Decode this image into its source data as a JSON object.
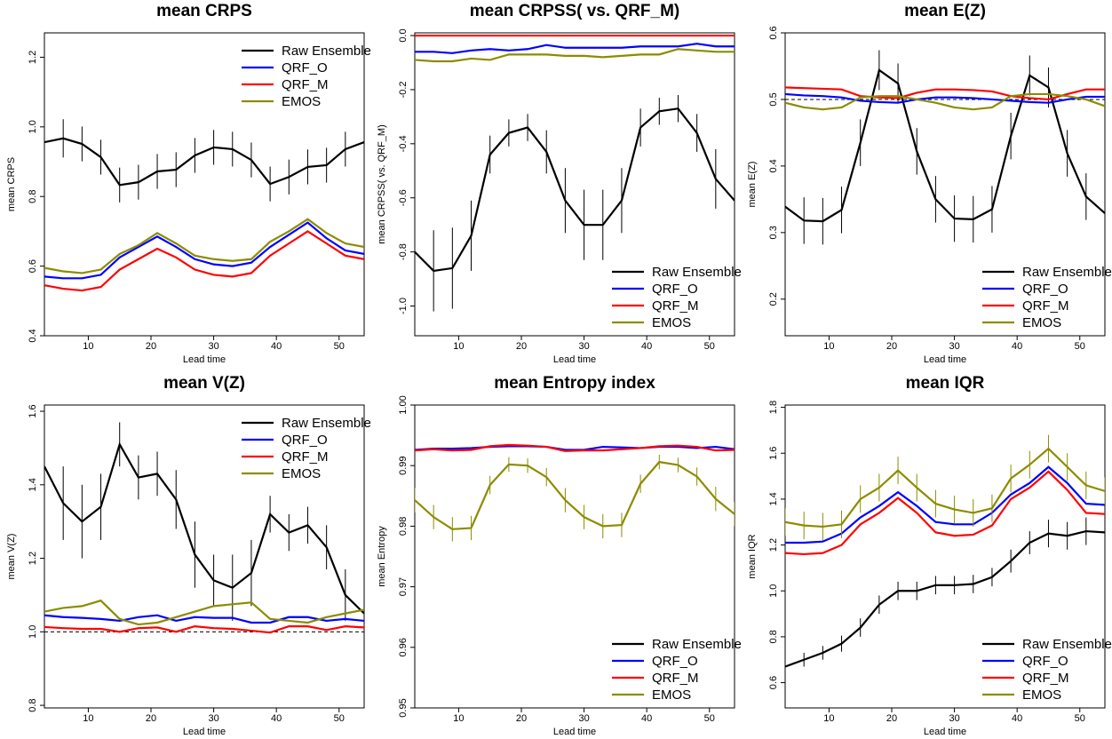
{
  "chart_data": [
    {
      "type": "line",
      "title": "mean CRPS",
      "xlabel": "Lead time",
      "ylabel": "mean CRPS",
      "legend": "top-right",
      "x": [
        3,
        6,
        9,
        12,
        15,
        18,
        21,
        24,
        27,
        30,
        33,
        36,
        39,
        42,
        45,
        48,
        51,
        54
      ],
      "xlim": [
        3,
        54
      ],
      "xticks": [
        10,
        20,
        30,
        40,
        50
      ],
      "ylim": [
        0.4,
        1.27
      ],
      "yticks": [
        0.4,
        0.6,
        0.8,
        {
          "value": 1.0,
          "label": "1.0"
        },
        1.2
      ],
      "series": [
        {
          "name": "Raw Ensemble",
          "color": "#000000",
          "values": [
            0.956,
            0.967,
            0.951,
            0.913,
            0.833,
            0.841,
            0.872,
            0.877,
            0.918,
            0.941,
            0.936,
            0.905,
            0.836,
            0.856,
            0.885,
            0.89,
            0.936,
            0.956
          ],
          "errors": [
            0.05,
            0.055,
            0.05,
            0.05,
            0.05,
            0.05,
            0.05,
            0.05,
            0.05,
            0.05,
            0.05,
            0.05,
            0.05,
            0.05,
            0.05,
            0.05,
            0.05,
            0.05
          ]
        },
        {
          "name": "QRF_O",
          "color": "#0000ff",
          "values": [
            0.57,
            0.565,
            0.565,
            0.575,
            0.625,
            0.655,
            0.685,
            0.655,
            0.62,
            0.605,
            0.6,
            0.61,
            0.655,
            0.69,
            0.725,
            0.68,
            0.645,
            0.635
          ]
        },
        {
          "name": "QRF_M",
          "color": "#ff0000",
          "values": [
            0.545,
            0.535,
            0.53,
            0.54,
            0.59,
            0.62,
            0.65,
            0.625,
            0.59,
            0.575,
            0.57,
            0.58,
            0.63,
            0.665,
            0.7,
            0.665,
            0.63,
            0.62
          ]
        },
        {
          "name": "EMOS",
          "color": "#8c8c00",
          "values": [
            0.595,
            0.585,
            0.58,
            0.59,
            0.635,
            0.66,
            0.695,
            0.665,
            0.63,
            0.62,
            0.615,
            0.62,
            0.67,
            0.7,
            0.735,
            0.695,
            0.665,
            0.655
          ]
        }
      ]
    },
    {
      "type": "line",
      "title": "mean CRPSS( vs. QRF_M)",
      "xlabel": "Lead time",
      "ylabel": "mean CRPSS( vs. QRF_M)",
      "legend": "bottom-right",
      "x": [
        3,
        6,
        9,
        12,
        15,
        18,
        21,
        24,
        27,
        30,
        33,
        36,
        39,
        42,
        45,
        48,
        51,
        54
      ],
      "xlim": [
        3,
        54
      ],
      "xticks": [
        10,
        20,
        30,
        40,
        50
      ],
      "ylim": [
        -1.11,
        0.01
      ],
      "yticks": [
        {
          "value": -1.0,
          "label": "-1.0"
        },
        -0.8,
        -0.6,
        -0.4,
        -0.2,
        {
          "value": 0.0,
          "label": "0.0"
        }
      ],
      "series": [
        {
          "name": "Raw Ensemble",
          "color": "#000000",
          "values": [
            -0.8,
            -0.87,
            -0.86,
            -0.74,
            -0.44,
            -0.36,
            -0.34,
            -0.43,
            -0.61,
            -0.7,
            -0.7,
            -0.61,
            -0.34,
            -0.28,
            -0.27,
            -0.36,
            -0.53,
            -0.61
          ],
          "errors": [
            0.12,
            0.15,
            0.15,
            0.13,
            0.07,
            0.05,
            0.05,
            0.08,
            0.12,
            0.13,
            0.13,
            0.12,
            0.07,
            0.05,
            0.05,
            0.07,
            0.11,
            0.12
          ]
        },
        {
          "name": "QRF_O",
          "color": "#0000ff",
          "values": [
            -0.06,
            -0.06,
            -0.065,
            -0.055,
            -0.05,
            -0.055,
            -0.05,
            -0.035,
            -0.045,
            -0.045,
            -0.045,
            -0.045,
            -0.04,
            -0.04,
            -0.04,
            -0.03,
            -0.04,
            -0.04
          ]
        },
        {
          "name": "QRF_M",
          "color": "#ff0000",
          "values": [
            0,
            0,
            0,
            0,
            0,
            0,
            0,
            0,
            0,
            0,
            0,
            0,
            0,
            0,
            0,
            0,
            0,
            0
          ]
        },
        {
          "name": "EMOS",
          "color": "#8c8c00",
          "values": [
            -0.09,
            -0.095,
            -0.095,
            -0.085,
            -0.09,
            -0.07,
            -0.07,
            -0.07,
            -0.075,
            -0.075,
            -0.08,
            -0.075,
            -0.07,
            -0.07,
            -0.05,
            -0.055,
            -0.06,
            -0.06
          ]
        }
      ]
    },
    {
      "type": "line",
      "title": "mean E(Z)",
      "xlabel": "Lead time",
      "ylabel": "mean E(Z)",
      "legend": "bottom-right",
      "reference_line": 0.5,
      "x": [
        3,
        6,
        9,
        12,
        15,
        18,
        21,
        24,
        27,
        30,
        33,
        36,
        39,
        42,
        45,
        48,
        51,
        54
      ],
      "xlim": [
        3,
        54
      ],
      "xticks": [
        10,
        20,
        30,
        40,
        50
      ],
      "ylim": [
        0.145,
        0.6
      ],
      "yticks": [
        0.2,
        0.3,
        0.4,
        0.5,
        0.6
      ],
      "series": [
        {
          "name": "Raw Ensemble",
          "color": "#000000",
          "values": [
            0.339,
            0.318,
            0.317,
            0.334,
            0.435,
            0.544,
            0.524,
            0.422,
            0.35,
            0.321,
            0.32,
            0.335,
            0.445,
            0.536,
            0.518,
            0.419,
            0.354,
            0.329
          ],
          "errors": [
            0.035,
            0.035,
            0.035,
            0.035,
            0.035,
            0.03,
            0.03,
            0.035,
            0.035,
            0.035,
            0.035,
            0.035,
            0.035,
            0.03,
            0.03,
            0.035,
            0.035,
            0.035
          ]
        },
        {
          "name": "QRF_O",
          "color": "#0000ff",
          "values": [
            0.508,
            0.506,
            0.505,
            0.503,
            0.498,
            0.496,
            0.495,
            0.5,
            0.503,
            0.503,
            0.502,
            0.5,
            0.498,
            0.496,
            0.495,
            0.5,
            0.504,
            0.504
          ]
        },
        {
          "name": "QRF_M",
          "color": "#ff0000",
          "values": [
            0.518,
            0.517,
            0.516,
            0.515,
            0.505,
            0.503,
            0.502,
            0.51,
            0.515,
            0.515,
            0.514,
            0.512,
            0.505,
            0.502,
            0.5,
            0.508,
            0.515,
            0.515
          ]
        },
        {
          "name": "EMOS",
          "color": "#8c8c00",
          "values": [
            0.495,
            0.488,
            0.485,
            0.488,
            0.503,
            0.505,
            0.505,
            0.5,
            0.495,
            0.488,
            0.485,
            0.488,
            0.505,
            0.508,
            0.508,
            0.505,
            0.5,
            0.49
          ]
        }
      ]
    },
    {
      "type": "line",
      "title": "mean V(Z)",
      "xlabel": "Lead time",
      "ylabel": "mean V(Z)",
      "legend": "top-right",
      "reference_line": 1.0,
      "x": [
        3,
        6,
        9,
        12,
        15,
        18,
        21,
        24,
        27,
        30,
        33,
        36,
        39,
        42,
        45,
        48,
        51,
        54
      ],
      "xlim": [
        3,
        54
      ],
      "xticks": [
        10,
        20,
        30,
        40,
        50
      ],
      "ylim": [
        0.793,
        1.617
      ],
      "yticks": [
        0.8,
        {
          "value": 1.0,
          "label": "1.0"
        },
        1.2,
        1.4,
        1.6
      ],
      "series": [
        {
          "name": "Raw Ensemble",
          "color": "#000000",
          "values": [
            1.45,
            1.35,
            1.3,
            1.34,
            1.51,
            1.42,
            1.43,
            1.36,
            1.21,
            1.14,
            1.12,
            1.16,
            1.32,
            1.27,
            1.29,
            1.23,
            1.1,
            1.05
          ],
          "errors": [
            0.09,
            0.1,
            0.1,
            0.09,
            0.06,
            0.06,
            0.06,
            0.08,
            0.09,
            0.07,
            0.09,
            0.09,
            0.05,
            0.05,
            0.05,
            0.06,
            0.07,
            0.07
          ]
        },
        {
          "name": "QRF_O",
          "color": "#0000ff",
          "values": [
            1.045,
            1.04,
            1.038,
            1.035,
            1.03,
            1.04,
            1.045,
            1.03,
            1.04,
            1.038,
            1.038,
            1.025,
            1.025,
            1.04,
            1.04,
            1.03,
            1.035,
            1.03
          ]
        },
        {
          "name": "QRF_M",
          "color": "#ff0000",
          "values": [
            1.013,
            1.01,
            1.008,
            1.008,
            1.0,
            1.01,
            1.012,
            1.0,
            1.015,
            1.01,
            1.008,
            1.003,
            0.998,
            1.015,
            1.015,
            1.005,
            1.015,
            1.012
          ]
        },
        {
          "name": "EMOS",
          "color": "#8c8c00",
          "values": [
            1.055,
            1.065,
            1.07,
            1.085,
            1.035,
            1.02,
            1.025,
            1.04,
            1.055,
            1.07,
            1.075,
            1.08,
            1.035,
            1.03,
            1.025,
            1.04,
            1.05,
            1.06
          ]
        }
      ]
    },
    {
      "type": "line",
      "title": "mean Entropy index",
      "xlabel": "Lead time",
      "ylabel": "mean Entropy",
      "legend": "bottom-right",
      "x": [
        3,
        6,
        9,
        12,
        15,
        18,
        21,
        24,
        27,
        30,
        33,
        36,
        39,
        42,
        45,
        48,
        51,
        54
      ],
      "xlim": [
        3,
        54
      ],
      "xticks": [
        10,
        20,
        30,
        40,
        50
      ],
      "ylim": [
        0.95,
        1.0
      ],
      "yticks": [
        0.95,
        0.96,
        0.97,
        0.98,
        0.99,
        {
          "value": 1.0,
          "label": "1.00"
        }
      ],
      "series": [
        {
          "name": "Raw Ensemble",
          "color": "#000000",
          "values": [
            null,
            null,
            null,
            null,
            null,
            null,
            null,
            null,
            null,
            null,
            null,
            null,
            null,
            null,
            null,
            null,
            null,
            null
          ]
        },
        {
          "name": "QRF_O",
          "color": "#0000ff",
          "values": [
            0.9926,
            0.9928,
            0.9928,
            0.9929,
            0.9931,
            0.9932,
            0.9932,
            0.9931,
            0.9926,
            0.9926,
            0.9931,
            0.993,
            0.9929,
            0.9931,
            0.9931,
            0.9929,
            0.9931,
            0.9927
          ]
        },
        {
          "name": "QRF_M",
          "color": "#ff0000",
          "values": [
            0.9925,
            0.9927,
            0.9925,
            0.9926,
            0.9932,
            0.9934,
            0.9933,
            0.9931,
            0.9924,
            0.9925,
            0.9925,
            0.9927,
            0.9929,
            0.9932,
            0.9933,
            0.9931,
            0.9925,
            0.9926
          ]
        },
        {
          "name": "EMOS",
          "color": "#8c8c00",
          "values": [
            0.9843,
            0.9815,
            0.9795,
            0.9797,
            0.9868,
            0.9902,
            0.99,
            0.9881,
            0.9843,
            0.9815,
            0.98,
            0.9802,
            0.987,
            0.9906,
            0.9901,
            0.9882,
            0.9845,
            0.982
          ],
          "errors": [
            0.002,
            0.002,
            0.002,
            0.002,
            0.0015,
            0.0012,
            0.0012,
            0.0015,
            0.002,
            0.002,
            0.002,
            0.002,
            0.0015,
            0.0012,
            0.0012,
            0.0015,
            0.002,
            0.002
          ]
        }
      ]
    },
    {
      "type": "line",
      "title": "mean IQR",
      "xlabel": "Lead time",
      "ylabel": "mean IQR",
      "legend": "bottom-right",
      "x": [
        3,
        6,
        9,
        12,
        15,
        18,
        21,
        24,
        27,
        30,
        33,
        36,
        39,
        42,
        45,
        48,
        51,
        54
      ],
      "xlim": [
        3,
        54
      ],
      "xticks": [
        10,
        20,
        30,
        40,
        50
      ],
      "ylim": [
        0.49,
        1.81
      ],
      "yticks": [
        0.6,
        0.8,
        {
          "value": 1.0,
          "label": "1.0"
        },
        1.2,
        1.4,
        1.6,
        1.8
      ],
      "series": [
        {
          "name": "Raw Ensemble",
          "color": "#000000",
          "values": [
            0.67,
            0.7,
            0.73,
            0.77,
            0.84,
            0.94,
            1.0,
            1.0,
            1.025,
            1.025,
            1.03,
            1.06,
            1.13,
            1.21,
            1.25,
            1.24,
            1.26,
            1.255
          ],
          "errors": [
            0.03,
            0.03,
            0.03,
            0.035,
            0.04,
            0.04,
            0.04,
            0.04,
            0.04,
            0.04,
            0.04,
            0.04,
            0.05,
            0.05,
            0.06,
            0.06,
            0.06,
            0.06
          ]
        },
        {
          "name": "QRF_O",
          "color": "#0000ff",
          "values": [
            1.21,
            1.21,
            1.215,
            1.25,
            1.32,
            1.37,
            1.43,
            1.37,
            1.3,
            1.29,
            1.29,
            1.34,
            1.42,
            1.47,
            1.54,
            1.47,
            1.38,
            1.375
          ]
        },
        {
          "name": "QRF_M",
          "color": "#ff0000",
          "values": [
            1.165,
            1.16,
            1.165,
            1.2,
            1.29,
            1.34,
            1.405,
            1.34,
            1.255,
            1.24,
            1.245,
            1.285,
            1.4,
            1.45,
            1.52,
            1.44,
            1.34,
            1.335
          ]
        },
        {
          "name": "EMOS",
          "color": "#8c8c00",
          "values": [
            1.3,
            1.285,
            1.28,
            1.29,
            1.4,
            1.45,
            1.525,
            1.45,
            1.38,
            1.355,
            1.34,
            1.36,
            1.49,
            1.55,
            1.62,
            1.54,
            1.46,
            1.435
          ],
          "errors": [
            0.06,
            0.06,
            0.06,
            0.06,
            0.06,
            0.06,
            0.06,
            0.06,
            0.06,
            0.06,
            0.06,
            0.06,
            0.06,
            0.06,
            0.06,
            0.06,
            0.06,
            0.06
          ]
        }
      ]
    }
  ]
}
